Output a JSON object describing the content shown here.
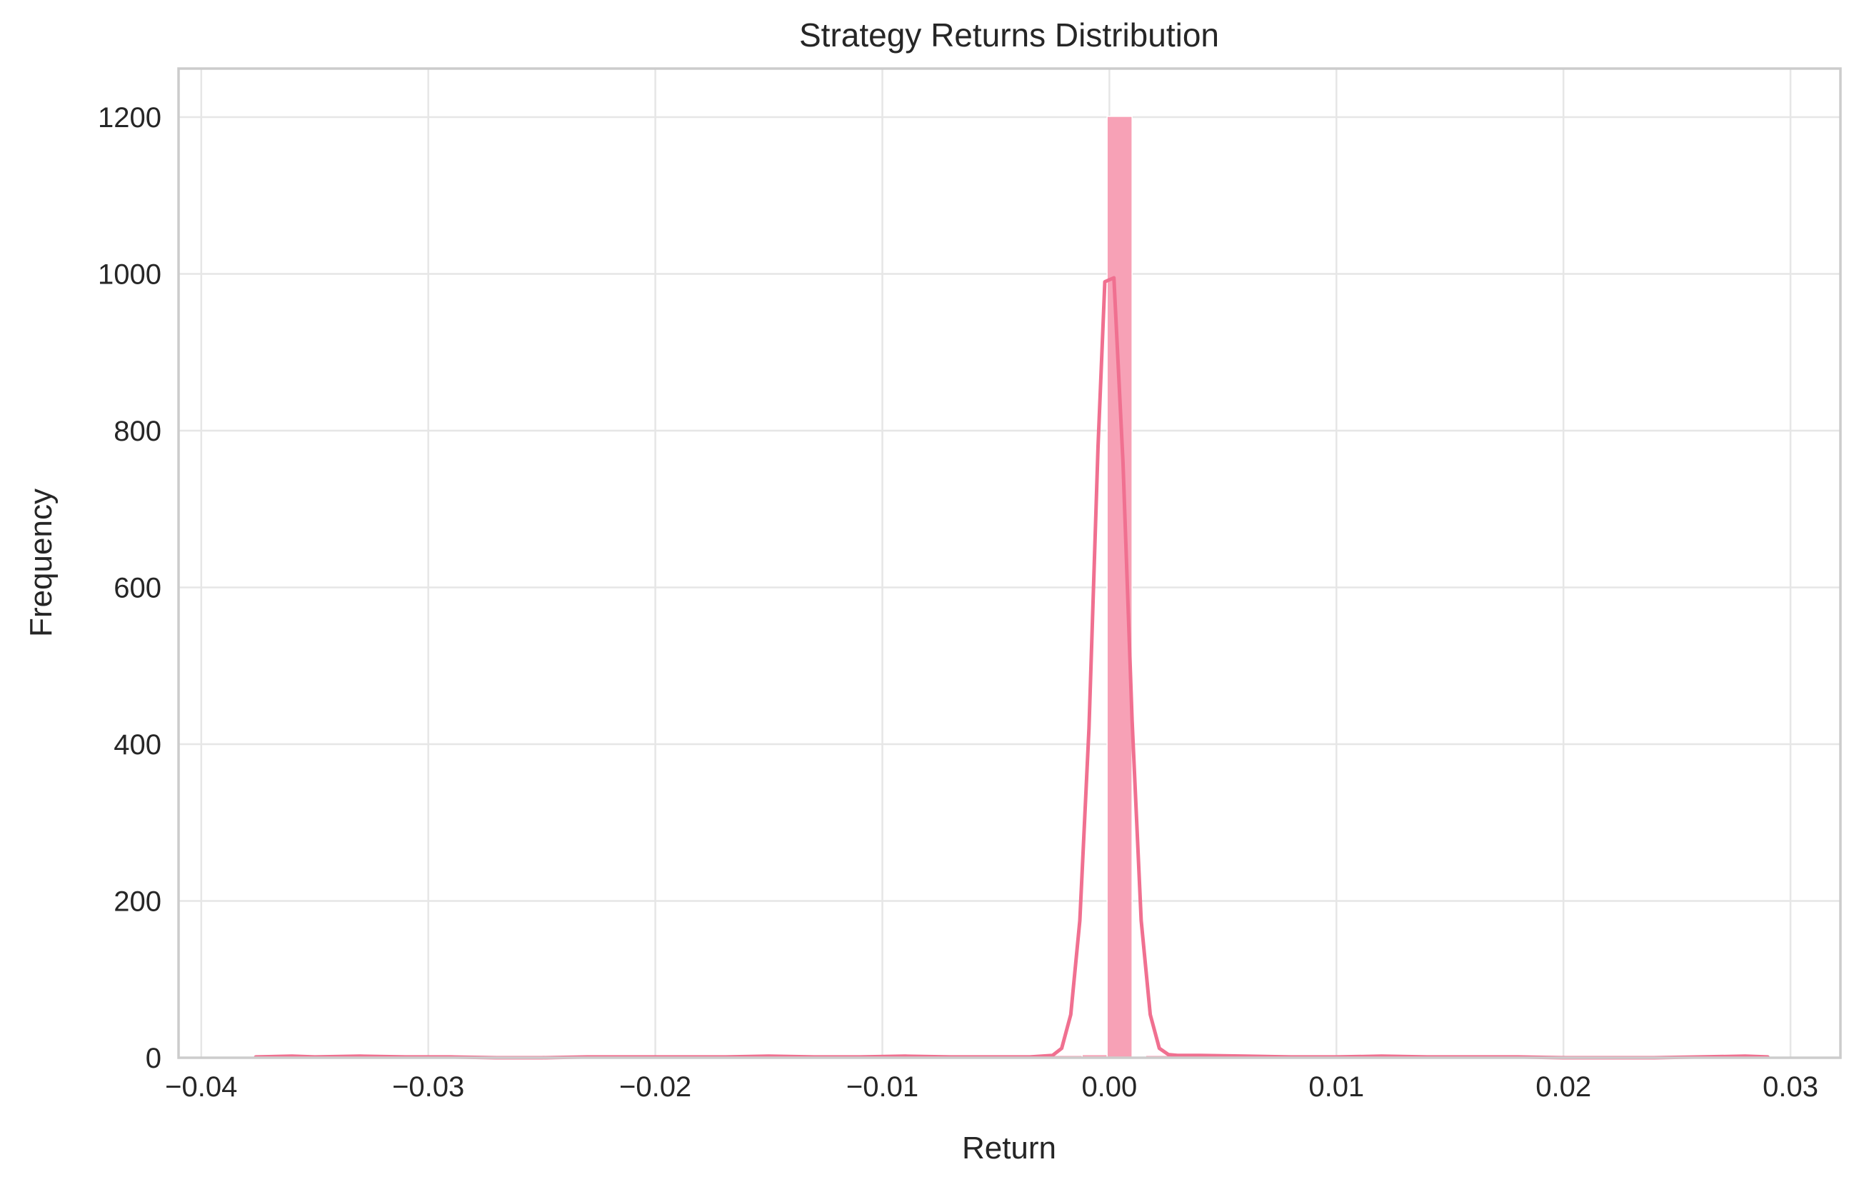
{
  "chart_data": {
    "type": "bar",
    "title": "Strategy Returns Distribution",
    "xlabel": "Return",
    "ylabel": "Frequency",
    "xlim": [
      -0.041,
      0.0322
    ],
    "ylim": [
      0,
      1262
    ],
    "grid": true,
    "x_ticks": [
      -0.04,
      -0.03,
      -0.02,
      -0.01,
      0.0,
      0.01,
      0.02,
      0.03
    ],
    "x_tick_labels": [
      "−0.04",
      "−0.03",
      "−0.02",
      "−0.01",
      "0.00",
      "0.01",
      "0.02",
      "0.03"
    ],
    "y_ticks": [
      0,
      200,
      400,
      600,
      800,
      1000,
      1200
    ],
    "y_tick_labels": [
      "0",
      "200",
      "400",
      "600",
      "800",
      "1000",
      "1200"
    ],
    "histogram": {
      "color": "#f7a1b6",
      "bins": [
        {
          "x0": -0.0376,
          "x1": -0.0362,
          "count": 1
        },
        {
          "x0": -0.0362,
          "x1": -0.0348,
          "count": 2
        },
        {
          "x0": -0.0334,
          "x1": -0.032,
          "count": 1
        },
        {
          "x0": -0.0236,
          "x1": -0.0222,
          "count": 1
        },
        {
          "x0": -0.0208,
          "x1": -0.0194,
          "count": 2
        },
        {
          "x0": -0.0166,
          "x1": -0.0152,
          "count": 2
        },
        {
          "x0": -0.0152,
          "x1": -0.0138,
          "count": 1
        },
        {
          "x0": -0.011,
          "x1": -0.0096,
          "count": 2
        },
        {
          "x0": -0.0082,
          "x1": -0.0068,
          "count": 1
        },
        {
          "x0": -0.0068,
          "x1": -0.0054,
          "count": 2
        },
        {
          "x0": -0.004,
          "x1": -0.0026,
          "count": 1
        },
        {
          "x0": -0.0026,
          "x1": -0.0012,
          "count": 3
        },
        {
          "x0": -0.0012,
          "x1": -0.0001,
          "count": 4
        },
        {
          "x0": -0.0001,
          "x1": 0.001,
          "count": 1201
        },
        {
          "x0": 0.0016,
          "x1": 0.003,
          "count": 3
        },
        {
          "x0": 0.003,
          "x1": 0.0044,
          "count": 2
        },
        {
          "x0": 0.0058,
          "x1": 0.0072,
          "count": 1
        },
        {
          "x0": 0.01,
          "x1": 0.0114,
          "count": 2
        },
        {
          "x0": 0.0114,
          "x1": 0.0128,
          "count": 1
        },
        {
          "x0": 0.0142,
          "x1": 0.0156,
          "count": 2
        },
        {
          "x0": 0.0156,
          "x1": 0.017,
          "count": 1
        },
        {
          "x0": 0.028,
          "x1": 0.0292,
          "count": 1
        }
      ]
    },
    "kde": {
      "color": "#f07090",
      "points": [
        [
          -0.0376,
          1
        ],
        [
          -0.036,
          2
        ],
        [
          -0.035,
          1
        ],
        [
          -0.033,
          2
        ],
        [
          -0.031,
          1
        ],
        [
          -0.029,
          1
        ],
        [
          -0.027,
          0
        ],
        [
          -0.025,
          0
        ],
        [
          -0.023,
          1
        ],
        [
          -0.021,
          1
        ],
        [
          -0.019,
          1
        ],
        [
          -0.017,
          1
        ],
        [
          -0.015,
          2
        ],
        [
          -0.013,
          1
        ],
        [
          -0.011,
          1
        ],
        [
          -0.009,
          2
        ],
        [
          -0.007,
          1
        ],
        [
          -0.005,
          1
        ],
        [
          -0.0035,
          1
        ],
        [
          -0.0025,
          3
        ],
        [
          -0.0021,
          12
        ],
        [
          -0.0017,
          55
        ],
        [
          -0.0013,
          175
        ],
        [
          -0.0009,
          420
        ],
        [
          -0.0005,
          780
        ],
        [
          -0.0002,
          990
        ],
        [
          0.0002,
          995
        ],
        [
          0.0006,
          760
        ],
        [
          0.001,
          430
        ],
        [
          0.0014,
          175
        ],
        [
          0.0018,
          55
        ],
        [
          0.0022,
          12
        ],
        [
          0.0026,
          4
        ],
        [
          0.003,
          3
        ],
        [
          0.004,
          3
        ],
        [
          0.006,
          2
        ],
        [
          0.008,
          1
        ],
        [
          0.01,
          1
        ],
        [
          0.012,
          2
        ],
        [
          0.014,
          1
        ],
        [
          0.016,
          1
        ],
        [
          0.018,
          1
        ],
        [
          0.02,
          0
        ],
        [
          0.022,
          0
        ],
        [
          0.024,
          0
        ],
        [
          0.026,
          1
        ],
        [
          0.028,
          2
        ],
        [
          0.029,
          1
        ]
      ]
    }
  }
}
